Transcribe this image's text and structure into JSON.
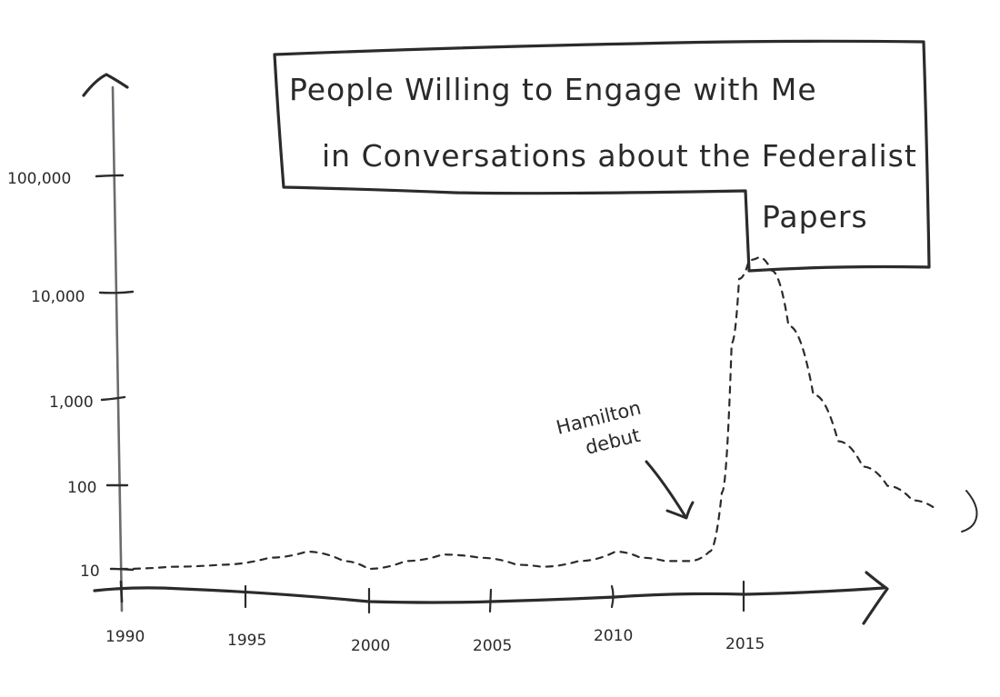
{
  "chart_data": {
    "type": "line",
    "title": "People Willing to Engage with Me in Conversations about the Federalist Papers",
    "title_lines": [
      "People Willing to Engage with Me",
      "in Conversations about the Federalist",
      "Papers"
    ],
    "xlabel": "",
    "ylabel": "",
    "y_scale": "log",
    "ylim": [
      10,
      100000
    ],
    "xlim": [
      1990,
      2023
    ],
    "x_ticks": [
      "1990",
      "1995",
      "2000",
      "2005",
      "2010",
      "2015"
    ],
    "y_ticks": [
      "10",
      "100",
      "1,000",
      "10,000",
      "100,000"
    ],
    "grid": false,
    "legend": null,
    "series": [
      {
        "name": "People willing to engage",
        "style": "dashed",
        "x": [
          1990,
          1992,
          1994,
          1996,
          1997.5,
          1999,
          2000,
          2001.5,
          2003,
          2004.5,
          2006,
          2007,
          2008.5,
          2010,
          2011,
          2012,
          2013,
          2013.8,
          2014.3,
          2014.7,
          2015,
          2015.4,
          2015.8,
          2016.3,
          2017,
          2018,
          2019,
          2020,
          2021,
          2022,
          2023
        ],
        "values": [
          10,
          10.5,
          11,
          13,
          15,
          12,
          10,
          12,
          14,
          13,
          11,
          10.5,
          12,
          15,
          13,
          12,
          12,
          15,
          60,
          2000,
          9000,
          14000,
          15000,
          11000,
          3000,
          600,
          200,
          110,
          70,
          50,
          40
        ]
      }
    ],
    "annotations": [
      {
        "text_lines": [
          "Hamilton",
          "debut"
        ],
        "points_to_x": 2013,
        "arrow": true
      }
    ]
  }
}
